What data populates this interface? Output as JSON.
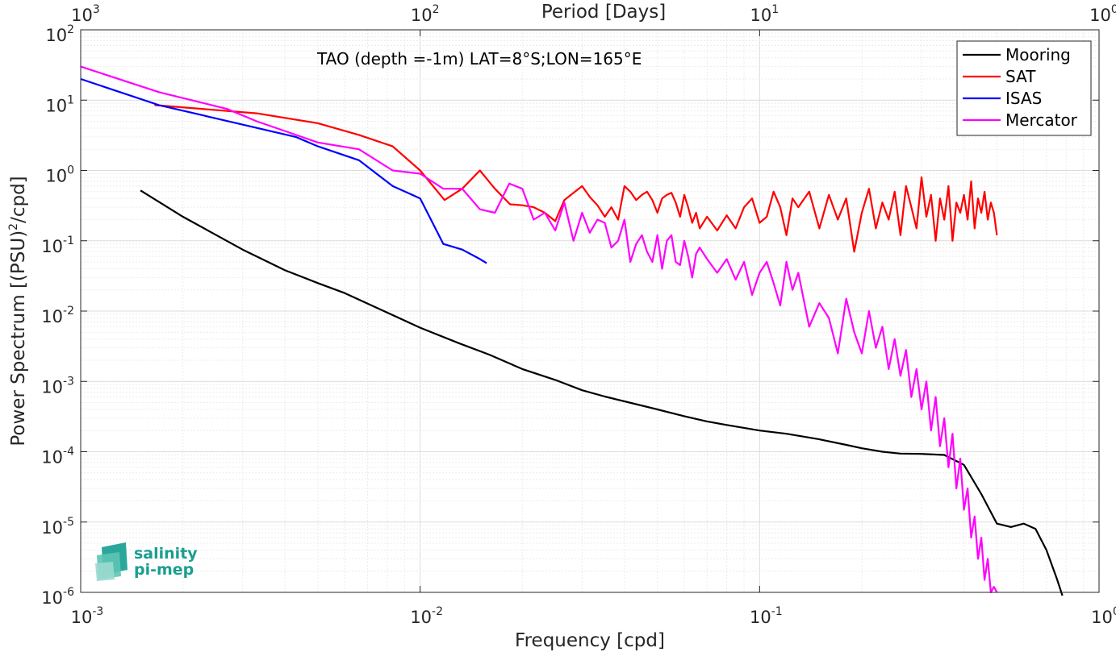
{
  "chart_data": {
    "type": "line",
    "title": "TAO (depth =-1m) LAT=8°S;LON=165°E",
    "xlabel": "Frequency [cpd]",
    "ylabel": "Power Spectrum [(PSU)^2/cpd]",
    "xlabel_top": "Period [Days]",
    "x_scale": "log",
    "y_scale": "log",
    "xlim": [
      0.001,
      1
    ],
    "ylim": [
      1e-06,
      100
    ],
    "grid": true,
    "legend_position": "top-right",
    "x_ticks": [
      {
        "value": 0.001,
        "base": "10",
        "exp": "-3"
      },
      {
        "value": 0.01,
        "base": "10",
        "exp": "-2"
      },
      {
        "value": 0.1,
        "base": "10",
        "exp": "-1"
      },
      {
        "value": 1,
        "base": "10",
        "exp": "0"
      }
    ],
    "x_ticks_top": [
      {
        "value": 0.001,
        "base": "10",
        "exp": "3"
      },
      {
        "value": 0.01,
        "base": "10",
        "exp": "2"
      },
      {
        "value": 0.1,
        "base": "10",
        "exp": "1"
      },
      {
        "value": 1,
        "base": "10",
        "exp": "0"
      }
    ],
    "y_ticks": [
      {
        "value": 100,
        "base": "10",
        "exp": "2"
      },
      {
        "value": 10,
        "base": "10",
        "exp": "1"
      },
      {
        "value": 1,
        "base": "10",
        "exp": "0"
      },
      {
        "value": 0.1,
        "base": "10",
        "exp": "-1"
      },
      {
        "value": 0.01,
        "base": "10",
        "exp": "-2"
      },
      {
        "value": 0.001,
        "base": "10",
        "exp": "-3"
      },
      {
        "value": 0.0001,
        "base": "10",
        "exp": "-4"
      },
      {
        "value": 1e-05,
        "base": "10",
        "exp": "-5"
      },
      {
        "value": 1e-06,
        "base": "10",
        "exp": "-6"
      }
    ],
    "series": [
      {
        "name": "Mooring",
        "color": "#000000",
        "x": [
          0.0015,
          0.002,
          0.003,
          0.004,
          0.005,
          0.006,
          0.008,
          0.01,
          0.013,
          0.016,
          0.02,
          0.025,
          0.03,
          0.035,
          0.04,
          0.05,
          0.06,
          0.07,
          0.08,
          0.1,
          0.12,
          0.15,
          0.18,
          0.2,
          0.23,
          0.26,
          0.3,
          0.35,
          0.4,
          0.45,
          0.5,
          0.55,
          0.6,
          0.65,
          0.7,
          0.75,
          0.78
        ],
        "y": [
          0.52,
          0.22,
          0.075,
          0.038,
          0.025,
          0.018,
          0.0095,
          0.0058,
          0.0035,
          0.0024,
          0.0015,
          0.00105,
          0.00075,
          0.00061,
          0.00052,
          0.0004,
          0.00032,
          0.00027,
          0.00024,
          0.0002,
          0.00018,
          0.00015,
          0.000125,
          0.000112,
          0.0001,
          9.4e-05,
          9.3e-05,
          9e-05,
          6.5e-05,
          2.5e-05,
          9.5e-06,
          8.5e-06,
          9.5e-06,
          8e-06,
          4e-06,
          1.6e-06,
          9e-07
        ]
      },
      {
        "name": "SAT",
        "color": "#ff0000",
        "x": [
          0.00165,
          0.0033,
          0.005,
          0.0066,
          0.0083,
          0.01,
          0.0118,
          0.0133,
          0.015,
          0.0166,
          0.0184,
          0.02,
          0.0216,
          0.0233,
          0.025,
          0.0266,
          0.0283,
          0.03,
          0.0316,
          0.0333,
          0.035,
          0.0366,
          0.0383,
          0.04,
          0.0416,
          0.0433,
          0.045,
          0.0466,
          0.0483,
          0.05,
          0.0516,
          0.0533,
          0.055,
          0.0566,
          0.0583,
          0.06,
          0.0616,
          0.0633,
          0.065,
          0.0666,
          0.07,
          0.075,
          0.08,
          0.085,
          0.09,
          0.095,
          0.1,
          0.105,
          0.11,
          0.115,
          0.12,
          0.125,
          0.13,
          0.14,
          0.15,
          0.16,
          0.17,
          0.18,
          0.19,
          0.2,
          0.21,
          0.22,
          0.23,
          0.24,
          0.25,
          0.26,
          0.27,
          0.28,
          0.29,
          0.3,
          0.31,
          0.32,
          0.33,
          0.34,
          0.35,
          0.36,
          0.37,
          0.38,
          0.39,
          0.4,
          0.41,
          0.42,
          0.43,
          0.44,
          0.45,
          0.46,
          0.47,
          0.48,
          0.49,
          0.5
        ],
        "y": [
          8.5,
          6.5,
          4.7,
          3.2,
          2.2,
          1.0,
          0.38,
          0.55,
          1.0,
          0.55,
          0.33,
          0.32,
          0.3,
          0.25,
          0.19,
          0.38,
          0.48,
          0.6,
          0.42,
          0.32,
          0.22,
          0.3,
          0.2,
          0.6,
          0.5,
          0.38,
          0.45,
          0.5,
          0.38,
          0.25,
          0.4,
          0.45,
          0.48,
          0.35,
          0.22,
          0.45,
          0.3,
          0.18,
          0.25,
          0.15,
          0.22,
          0.14,
          0.23,
          0.15,
          0.3,
          0.4,
          0.18,
          0.22,
          0.5,
          0.3,
          0.12,
          0.4,
          0.3,
          0.5,
          0.15,
          0.45,
          0.2,
          0.4,
          0.07,
          0.25,
          0.55,
          0.15,
          0.35,
          0.2,
          0.5,
          0.12,
          0.6,
          0.3,
          0.15,
          0.8,
          0.22,
          0.45,
          0.1,
          0.4,
          0.2,
          0.6,
          0.1,
          0.35,
          0.25,
          0.45,
          0.2,
          0.7,
          0.15,
          0.4,
          0.25,
          0.5,
          0.2,
          0.35,
          0.25,
          0.12
        ]
      },
      {
        "name": "ISAS",
        "color": "#0000ff",
        "x": [
          0.001,
          0.0017,
          0.0043,
          0.005,
          0.0066,
          0.0083,
          0.01,
          0.0117,
          0.0133,
          0.015,
          0.0157
        ],
        "y": [
          20,
          8.5,
          3.0,
          2.2,
          1.4,
          0.6,
          0.4,
          0.09,
          0.075,
          0.055,
          0.048
        ]
      },
      {
        "name": "Mercator",
        "color": "#ff00ff",
        "x": [
          0.001,
          0.0017,
          0.0027,
          0.0033,
          0.005,
          0.0066,
          0.0083,
          0.01,
          0.0117,
          0.0133,
          0.015,
          0.0166,
          0.0183,
          0.02,
          0.0216,
          0.0233,
          0.025,
          0.0266,
          0.0283,
          0.03,
          0.0316,
          0.0333,
          0.035,
          0.0366,
          0.0383,
          0.04,
          0.0416,
          0.0433,
          0.045,
          0.0466,
          0.0483,
          0.05,
          0.0516,
          0.0533,
          0.055,
          0.0566,
          0.0583,
          0.06,
          0.0616,
          0.0633,
          0.065,
          0.0666,
          0.07,
          0.075,
          0.08,
          0.085,
          0.09,
          0.095,
          0.1,
          0.105,
          0.11,
          0.115,
          0.12,
          0.125,
          0.13,
          0.14,
          0.15,
          0.16,
          0.17,
          0.18,
          0.19,
          0.2,
          0.21,
          0.22,
          0.23,
          0.24,
          0.25,
          0.26,
          0.27,
          0.28,
          0.29,
          0.3,
          0.31,
          0.32,
          0.33,
          0.34,
          0.35,
          0.36,
          0.37,
          0.38,
          0.39,
          0.4,
          0.41,
          0.42,
          0.43,
          0.44,
          0.45,
          0.46,
          0.47,
          0.48,
          0.49,
          0.5
        ],
        "y": [
          30,
          13,
          7.5,
          5.0,
          2.5,
          2.0,
          1.0,
          0.9,
          0.55,
          0.55,
          0.28,
          0.25,
          0.65,
          0.55,
          0.2,
          0.25,
          0.14,
          0.35,
          0.1,
          0.25,
          0.13,
          0.2,
          0.18,
          0.08,
          0.1,
          0.2,
          0.05,
          0.09,
          0.12,
          0.07,
          0.05,
          0.12,
          0.04,
          0.1,
          0.12,
          0.05,
          0.045,
          0.1,
          0.06,
          0.03,
          0.065,
          0.08,
          0.055,
          0.035,
          0.055,
          0.028,
          0.05,
          0.017,
          0.035,
          0.05,
          0.025,
          0.012,
          0.05,
          0.02,
          0.035,
          0.006,
          0.013,
          0.008,
          0.0025,
          0.015,
          0.005,
          0.0025,
          0.01,
          0.003,
          0.006,
          0.0015,
          0.004,
          0.0012,
          0.0028,
          0.0006,
          0.0015,
          0.0004,
          0.001,
          0.0002,
          0.0006,
          0.00012,
          0.0003,
          6e-05,
          0.00018,
          3e-05,
          8e-05,
          1.5e-05,
          3e-05,
          6e-06,
          1.2e-05,
          3e-06,
          6e-06,
          1.5e-06,
          3e-06,
          1e-06,
          1.2e-06,
          1e-06
        ]
      }
    ]
  },
  "logo": {
    "line1": "salinity",
    "line2": "pi-mep"
  }
}
